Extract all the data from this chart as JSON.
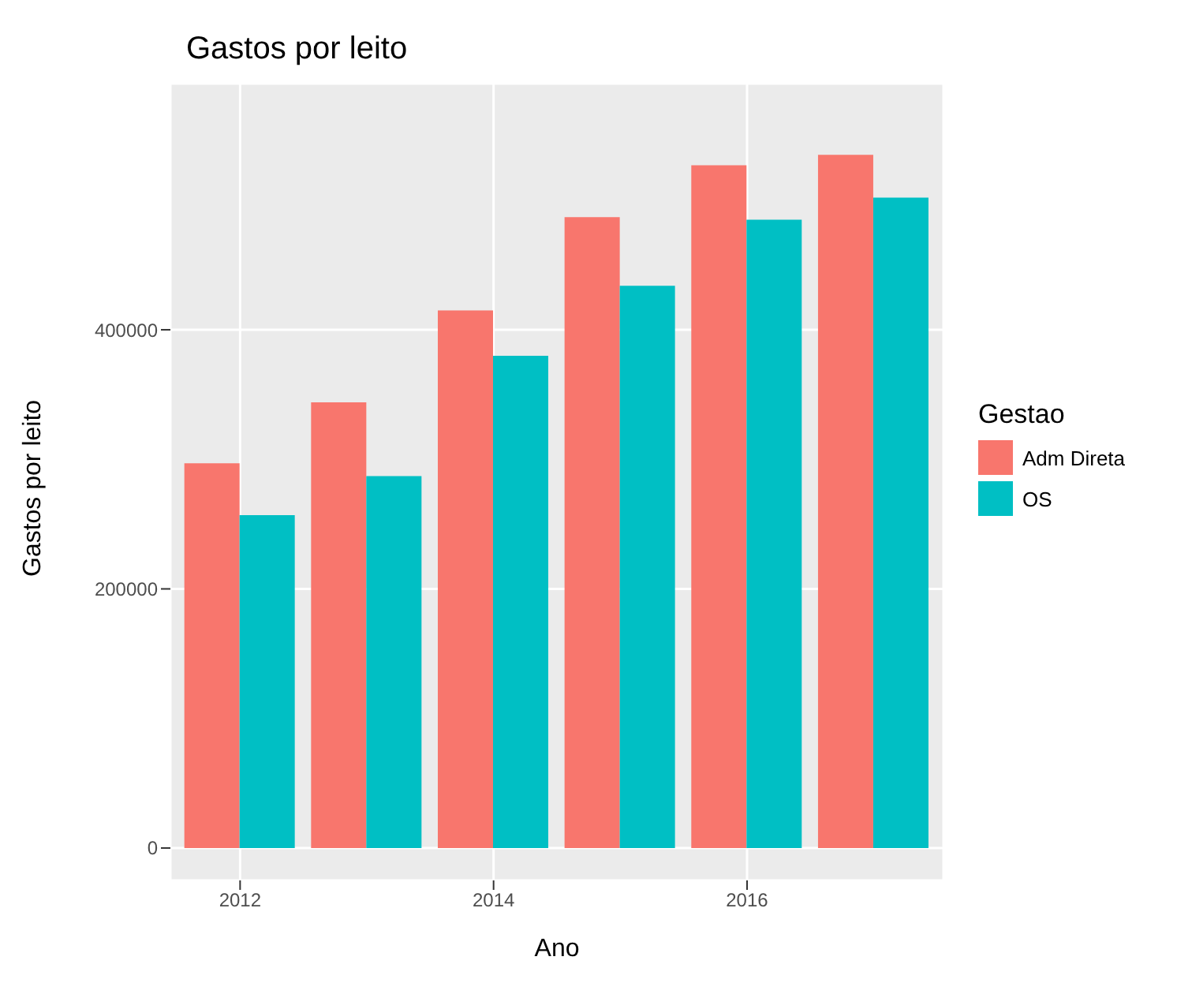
{
  "chart_data": {
    "type": "bar",
    "title": "Gastos por leito",
    "xlabel": "Ano",
    "ylabel": "Gastos por leito",
    "legend_title": "Gestao",
    "x": [
      2012,
      2013,
      2014,
      2015,
      2016,
      2017
    ],
    "series": [
      {
        "name": "Adm Direta",
        "color": "#f8766d",
        "values": [
          297000,
          344000,
          415000,
          487000,
          527000,
          535000
        ]
      },
      {
        "name": "OS",
        "color": "#00bfc4",
        "values": [
          257000,
          287000,
          380000,
          434000,
          485000,
          502000
        ]
      }
    ],
    "xlim": [
      2011.45,
      2017.55
    ],
    "xticks": [
      2012,
      2014,
      2016
    ],
    "ylim": [
      -25000,
      590000
    ],
    "yticks": [
      0,
      200000,
      400000
    ],
    "grid": true,
    "legend": "right"
  }
}
